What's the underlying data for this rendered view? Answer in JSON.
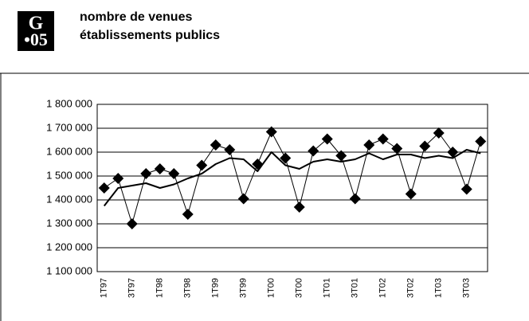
{
  "badge": {
    "letter": "G",
    "number": "•05"
  },
  "chart_data": {
    "type": "line",
    "title": "nombre de venues",
    "subtitle": "établissements publics",
    "categories": [
      "1T97",
      null,
      "3T97",
      null,
      "1T98",
      null,
      "3T98",
      null,
      "1T99",
      null,
      "3T99",
      null,
      "1T00",
      null,
      "3T00",
      null,
      "1T01",
      null,
      "3T01",
      null,
      "1T02",
      null,
      "3T02",
      null,
      "1T03",
      null,
      "3T03",
      null
    ],
    "series": [
      {
        "color": "#000000",
        "marker": "diamond",
        "width": 1,
        "values": [
          1450000,
          1490000,
          1300000,
          1510000,
          1530000,
          1510000,
          1340000,
          1545000,
          1630000,
          1610000,
          1405000,
          1550000,
          1685000,
          1575000,
          1370000,
          1605000,
          1655000,
          1585000,
          1405000,
          1630000,
          1655000,
          1615000,
          1425000,
          1625000,
          1680000,
          1600000,
          1445000,
          1645000
        ]
      },
      {
        "color": "#000000",
        "width": 2,
        "values": [
          1375000,
          1450000,
          1460000,
          1470000,
          1450000,
          1465000,
          1490000,
          1510000,
          1550000,
          1575000,
          1570000,
          1520000,
          1600000,
          1545000,
          1530000,
          1560000,
          1570000,
          1560000,
          1570000,
          1595000,
          1570000,
          1590000,
          1590000,
          1575000,
          1585000,
          1575000,
          1610000,
          1595000
        ]
      }
    ],
    "ylim": [
      1100000,
      1800000
    ],
    "yticks": [
      {
        "value": 1100000,
        "label": "1 100 000"
      },
      {
        "value": 1200000,
        "label": "1 200 000"
      },
      {
        "value": 1300000,
        "label": "1 300 000"
      },
      {
        "value": 1400000,
        "label": "1 400 000"
      },
      {
        "value": 1500000,
        "label": "1 500 000"
      },
      {
        "value": 1600000,
        "label": "1 600 000"
      },
      {
        "value": 1700000,
        "label": "1 700 000"
      },
      {
        "value": 1800000,
        "label": "1 800 000"
      }
    ],
    "grid": true
  }
}
